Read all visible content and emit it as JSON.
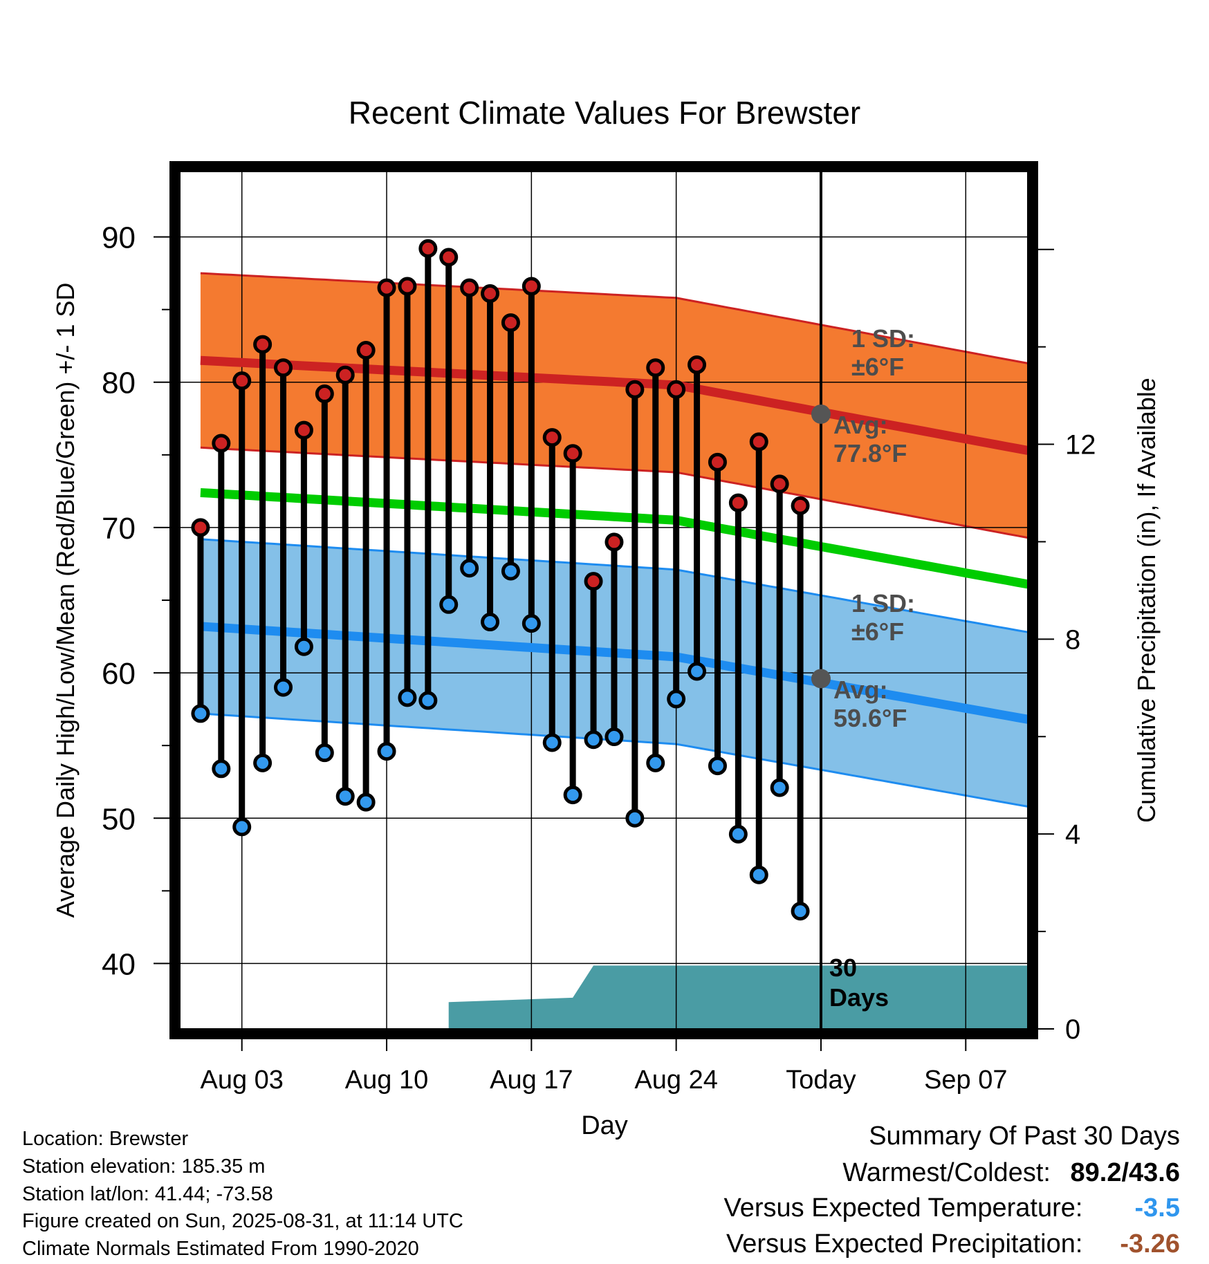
{
  "chart_data": {
    "type": "line",
    "title": "Recent Climate Values For Brewster",
    "xlabel": "Day",
    "ylabel": "Average Daily High/Low/Mean (Red/Blue/Green) +/- 1 SD",
    "ylabel_right": "Cumulative Precipitation (in), If Available",
    "x_tick_labels": [
      "Aug 03",
      "Aug 10",
      "Aug 17",
      "Aug 24",
      "Today",
      "Sep 07"
    ],
    "x_tick_dates": [
      "2025-08-03",
      "2025-08-10",
      "2025-08-17",
      "2025-08-24",
      "2025-08-31",
      "2025-09-07"
    ],
    "xlim": [
      "2025-07-31",
      "2025-09-10"
    ],
    "ylim": [
      35.5,
      94.5
    ],
    "y_ticks": [
      40,
      50,
      60,
      70,
      80,
      90
    ],
    "ylim_right": [
      0,
      17.6
    ],
    "y_ticks_right": [
      0,
      4,
      8,
      12
    ],
    "grid": true,
    "today": "2025-08-31",
    "dates": [
      "2025-08-01",
      "2025-08-02",
      "2025-08-03",
      "2025-08-04",
      "2025-08-05",
      "2025-08-06",
      "2025-08-07",
      "2025-08-08",
      "2025-08-09",
      "2025-08-10",
      "2025-08-11",
      "2025-08-12",
      "2025-08-13",
      "2025-08-14",
      "2025-08-15",
      "2025-08-16",
      "2025-08-17",
      "2025-08-18",
      "2025-08-19",
      "2025-08-20",
      "2025-08-21",
      "2025-08-22",
      "2025-08-23",
      "2025-08-24",
      "2025-08-25",
      "2025-08-26",
      "2025-08-27",
      "2025-08-28",
      "2025-08-29",
      "2025-08-30"
    ],
    "series": [
      {
        "name": "High",
        "color": "#cc2222",
        "values": [
          70.0,
          75.8,
          80.1,
          82.6,
          81.0,
          76.7,
          79.2,
          80.5,
          82.2,
          86.5,
          86.6,
          89.2,
          88.6,
          86.5,
          86.1,
          84.1,
          86.6,
          76.2,
          75.1,
          66.3,
          69.0,
          79.5,
          81.0,
          79.5,
          81.2,
          74.5,
          71.7,
          75.9,
          73.0,
          71.5
        ]
      },
      {
        "name": "Low",
        "color": "#3399ee",
        "values": [
          57.2,
          53.4,
          49.4,
          53.8,
          59.0,
          61.8,
          54.5,
          51.5,
          51.1,
          54.6,
          58.3,
          58.1,
          64.7,
          67.2,
          63.5,
          67.0,
          63.4,
          55.2,
          51.6,
          55.4,
          55.6,
          50.0,
          53.8,
          58.2,
          60.1,
          53.6,
          48.9,
          46.1,
          52.1,
          43.6
        ]
      }
    ],
    "normal_high": {
      "dates": [
        "2025-08-01",
        "2025-08-24",
        "2025-09-10"
      ],
      "mean": [
        81.5,
        79.8,
        75.3
      ],
      "sd": 6,
      "color": "#cc2222",
      "band_color": "#f47a30"
    },
    "normal_mean": {
      "dates": [
        "2025-08-01",
        "2025-08-24",
        "2025-09-10"
      ],
      "mean": [
        72.4,
        70.5,
        66.1
      ],
      "color": "#00cc00"
    },
    "normal_low": {
      "dates": [
        "2025-08-01",
        "2025-08-24",
        "2025-09-10"
      ],
      "mean": [
        63.2,
        61.1,
        56.8
      ],
      "sd": 6,
      "color": "#1e8cf0",
      "band_color": "#84c0e8"
    },
    "precip": {
      "color": "#4a9ca4",
      "dates": [
        "2025-08-13",
        "2025-08-13",
        "2025-08-19",
        "2025-08-19",
        "2025-08-20",
        "2025-09-10"
      ],
      "values": [
        0.0,
        0.55,
        0.64,
        0.64,
        1.3,
        1.3
      ]
    },
    "annotations": {
      "high_sd": "1 SD:",
      "high_sd_value": "±6°F",
      "high_avg": "Avg:",
      "high_avg_value": "77.8°F",
      "low_sd": "1 SD:",
      "low_sd_value": "±6°F",
      "low_avg": "Avg:",
      "low_avg_value": "59.6°F",
      "today_avg_high": 77.8,
      "today_avg_low": 59.6,
      "days_line1": "30",
      "days_line2": "Days"
    }
  },
  "footer": {
    "location": "Location: Brewster",
    "elevation": "Station elevation: 185.35 m",
    "latlon": "Station lat/lon: 41.44; -73.58",
    "created": "Figure created on Sun, 2025-08-31, at 11:14 UTC",
    "normals": "Climate Normals Estimated From 1990-2020"
  },
  "summary": {
    "title": "Summary Of Past 30 Days",
    "warm_cold_label": "Warmest/Coldest:",
    "warm_cold_value": "89.2/43.6",
    "temp_label": "Versus Expected Temperature:",
    "temp_value": "-3.5",
    "temp_color": "#2f96ee",
    "precip_label": "Versus Expected Precipitation:",
    "precip_value": "-3.26",
    "precip_color": "#a0522d"
  }
}
